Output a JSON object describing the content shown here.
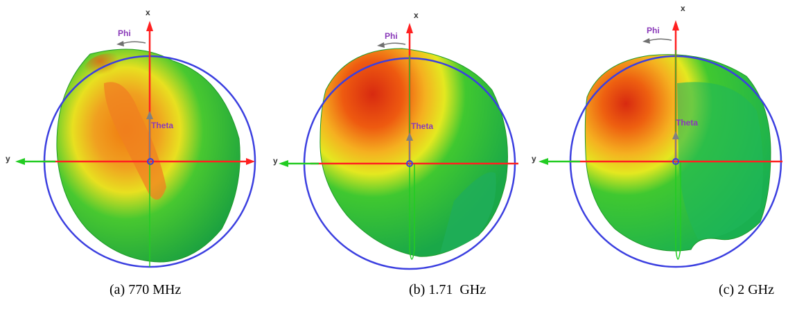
{
  "figure": {
    "panels": [
      {
        "caption": "(a) 770 MHz",
        "x_axis": "x",
        "y_axis": "y",
        "phi_label": "Phi",
        "theta_label": "Theta"
      },
      {
        "caption": "(b) 1.71  GHz",
        "x_axis": "x",
        "y_axis": "y",
        "phi_label": "Phi",
        "theta_label": "Theta"
      },
      {
        "caption": "(c) 2 GHz",
        "x_axis": "x",
        "y_axis": "y",
        "phi_label": "Phi",
        "theta_label": "Theta"
      }
    ]
  },
  "colors": {
    "sphere_outline": "#3b3fe0",
    "x_axis": "#ff2020",
    "y_axis": "#22cc22",
    "theta_arrow": "#808080",
    "label": "#8a3ab9",
    "hot": "#e02010",
    "warm": "#ff8c00",
    "mid": "#f0e000",
    "cool": "#22c02a"
  }
}
